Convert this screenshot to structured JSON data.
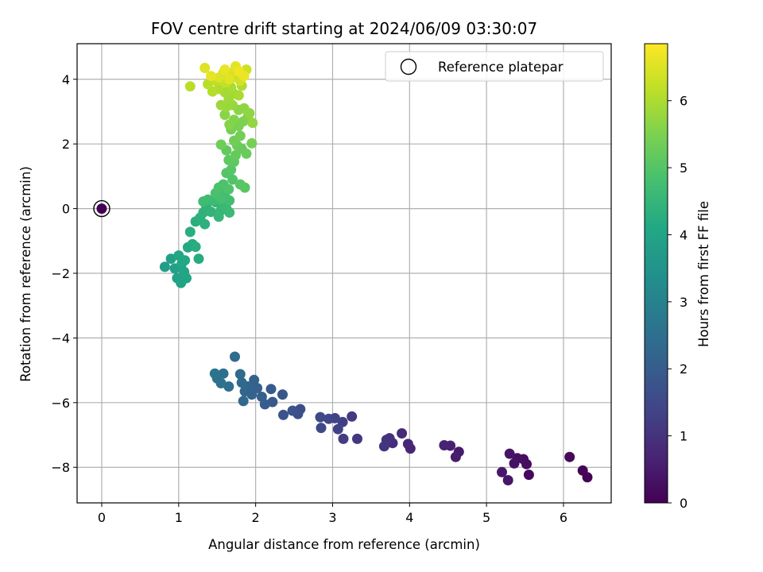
{
  "chart_data": {
    "type": "scatter",
    "title": "FOV centre drift starting at 2024/06/09 03:30:07",
    "xlabel": "Angular distance from reference (arcmin)",
    "ylabel": "Rotation from reference (arcmin)",
    "colorbar_label": "Hours from first FF file",
    "xlim": [
      -0.32,
      6.62
    ],
    "ylim": [
      -9.1,
      5.1
    ],
    "clim": [
      0,
      6.85
    ],
    "x_ticks": [
      0,
      1,
      2,
      3,
      4,
      5,
      6
    ],
    "y_ticks": [
      -8,
      -6,
      -4,
      -2,
      0,
      2,
      4
    ],
    "colorbar_ticks": [
      0,
      1,
      2,
      3,
      4,
      5,
      6
    ],
    "grid": true,
    "legend": {
      "placement": "top-right",
      "entries": [
        "Reference platepar"
      ]
    },
    "colormap": "viridis",
    "reference_point": {
      "x": 0,
      "y": 0,
      "t": 0
    },
    "points": [
      [
        6.31,
        -8.31,
        0.03
      ],
      [
        6.25,
        -8.1,
        0.08
      ],
      [
        6.08,
        -7.68,
        0.13
      ],
      [
        5.55,
        -8.23,
        0.18
      ],
      [
        5.52,
        -7.9,
        0.22
      ],
      [
        5.48,
        -7.75,
        0.26
      ],
      [
        5.4,
        -7.72,
        0.3
      ],
      [
        5.36,
        -7.88,
        0.34
      ],
      [
        5.3,
        -7.58,
        0.38
      ],
      [
        5.28,
        -8.4,
        0.42
      ],
      [
        5.2,
        -8.15,
        0.45
      ],
      [
        4.64,
        -7.52,
        0.5
      ],
      [
        4.6,
        -7.68,
        0.55
      ],
      [
        4.53,
        -7.33,
        0.6
      ],
      [
        4.45,
        -7.32,
        0.65
      ],
      [
        4.01,
        -7.42,
        0.72
      ],
      [
        3.98,
        -7.28,
        0.78
      ],
      [
        3.9,
        -6.95,
        0.84
      ],
      [
        3.78,
        -7.25,
        0.9
      ],
      [
        3.74,
        -7.1,
        0.95
      ],
      [
        3.7,
        -7.15,
        1.0
      ],
      [
        3.67,
        -7.35,
        1.05
      ],
      [
        3.32,
        -7.12,
        1.1
      ],
      [
        3.25,
        -6.43,
        1.16
      ],
      [
        3.14,
        -7.12,
        1.22
      ],
      [
        3.13,
        -6.6,
        1.28
      ],
      [
        3.07,
        -6.82,
        1.33
      ],
      [
        3.03,
        -6.48,
        1.38
      ],
      [
        2.95,
        -6.5,
        1.43
      ],
      [
        2.85,
        -6.78,
        1.48
      ],
      [
        2.84,
        -6.45,
        1.53
      ],
      [
        2.58,
        -6.2,
        1.6
      ],
      [
        2.55,
        -6.35,
        1.66
      ],
      [
        2.48,
        -6.25,
        1.72
      ],
      [
        2.36,
        -6.38,
        1.78
      ],
      [
        2.35,
        -5.75,
        1.84
      ],
      [
        2.22,
        -5.98,
        1.9
      ],
      [
        2.2,
        -5.58,
        1.95
      ],
      [
        2.12,
        -6.05,
        2.0
      ],
      [
        2.08,
        -5.82,
        2.05
      ],
      [
        2.02,
        -5.55,
        2.1
      ],
      [
        1.98,
        -5.3,
        2.14
      ],
      [
        1.95,
        -5.75,
        2.18
      ],
      [
        1.9,
        -5.5,
        2.22
      ],
      [
        1.86,
        -5.65,
        2.26
      ],
      [
        1.84,
        -5.95,
        2.3
      ],
      [
        1.82,
        -5.38,
        2.34
      ],
      [
        1.8,
        -5.12,
        2.38
      ],
      [
        1.73,
        -4.58,
        2.42
      ],
      [
        1.65,
        -5.5,
        2.46
      ],
      [
        1.58,
        -5.1,
        2.5
      ],
      [
        1.55,
        -5.4,
        2.54
      ],
      [
        1.5,
        -5.25,
        2.58
      ],
      [
        1.47,
        -5.1,
        2.62
      ],
      [
        0.82,
        -1.8,
        3.8
      ],
      [
        0.9,
        -1.55,
        3.84
      ],
      [
        0.95,
        -1.85,
        3.88
      ],
      [
        0.98,
        -2.15,
        3.92
      ],
      [
        1.03,
        -2.3,
        3.96
      ],
      [
        1.07,
        -1.95,
        4.0
      ],
      [
        1.1,
        -2.15,
        4.03
      ],
      [
        1.04,
        -1.7,
        4.06
      ],
      [
        1.0,
        -1.45,
        4.09
      ],
      [
        1.08,
        -1.6,
        4.12
      ],
      [
        1.12,
        -1.2,
        4.15
      ],
      [
        1.18,
        -1.1,
        4.18
      ],
      [
        1.26,
        -1.55,
        4.21
      ],
      [
        1.22,
        -1.18,
        4.24
      ],
      [
        1.15,
        -0.72,
        4.27
      ],
      [
        1.22,
        -0.4,
        4.3
      ],
      [
        1.28,
        -0.28,
        4.33
      ],
      [
        1.34,
        -0.48,
        4.36
      ],
      [
        1.32,
        -0.12,
        4.39
      ],
      [
        1.36,
        0.05,
        4.42
      ],
      [
        1.42,
        -0.1,
        4.45
      ],
      [
        1.48,
        0.2,
        4.48
      ],
      [
        1.55,
        -0.05,
        4.51
      ],
      [
        1.52,
        -0.25,
        4.54
      ],
      [
        1.58,
        0.1,
        4.57
      ],
      [
        1.62,
        0.0,
        4.6
      ],
      [
        1.66,
        -0.12,
        4.63
      ],
      [
        1.45,
        0.25,
        4.66
      ],
      [
        1.38,
        0.28,
        4.69
      ],
      [
        1.32,
        0.22,
        4.72
      ],
      [
        1.6,
        0.45,
        4.75
      ],
      [
        1.66,
        0.25,
        4.78
      ],
      [
        1.55,
        0.3,
        4.81
      ],
      [
        1.48,
        0.48,
        4.84
      ],
      [
        1.52,
        0.65,
        4.87
      ],
      [
        1.58,
        0.75,
        4.9
      ],
      [
        1.65,
        0.6,
        4.93
      ],
      [
        1.7,
        0.9,
        4.96
      ],
      [
        1.62,
        1.1,
        4.99
      ],
      [
        1.68,
        1.2,
        5.02
      ],
      [
        1.8,
        0.75,
        5.05
      ],
      [
        1.86,
        0.65,
        5.08
      ],
      [
        1.72,
        1.45,
        5.11
      ],
      [
        1.65,
        1.5,
        5.14
      ],
      [
        1.62,
        1.8,
        5.17
      ],
      [
        1.74,
        1.65,
        5.2
      ],
      [
        1.82,
        1.85,
        5.23
      ],
      [
        1.88,
        1.7,
        5.26
      ],
      [
        1.76,
        1.95,
        5.29
      ],
      [
        1.55,
        1.98,
        5.32
      ],
      [
        1.72,
        2.1,
        5.35
      ],
      [
        1.8,
        2.25,
        5.38
      ],
      [
        1.68,
        2.45,
        5.41
      ],
      [
        1.95,
        2.02,
        5.44
      ],
      [
        1.78,
        2.55,
        5.47
      ],
      [
        1.84,
        2.7,
        5.5
      ],
      [
        1.9,
        2.85,
        5.53
      ],
      [
        1.72,
        2.75,
        5.56
      ],
      [
        1.66,
        2.6,
        5.59
      ],
      [
        1.6,
        2.9,
        5.62
      ],
      [
        1.78,
        3.05,
        5.65
      ],
      [
        1.85,
        3.1,
        5.68
      ],
      [
        1.92,
        2.95,
        5.71
      ],
      [
        1.96,
        2.65,
        5.74
      ],
      [
        1.7,
        3.2,
        5.77
      ],
      [
        1.62,
        3.15,
        5.8
      ],
      [
        1.55,
        3.2,
        5.83
      ],
      [
        1.65,
        3.4,
        5.86
      ],
      [
        1.72,
        3.55,
        5.89
      ],
      [
        1.6,
        3.6,
        5.92
      ],
      [
        1.68,
        3.75,
        5.95
      ],
      [
        1.78,
        3.5,
        5.98
      ],
      [
        1.82,
        3.8,
        6.01
      ],
      [
        1.52,
        3.7,
        6.04
      ],
      [
        1.44,
        3.62,
        6.07
      ],
      [
        1.38,
        3.85,
        6.1
      ],
      [
        1.15,
        3.78,
        6.13
      ],
      [
        1.48,
        3.95,
        6.16
      ],
      [
        1.55,
        4.0,
        6.19
      ],
      [
        1.62,
        3.9,
        6.22
      ],
      [
        1.7,
        4.05,
        6.25
      ],
      [
        1.76,
        4.1,
        6.28
      ],
      [
        1.82,
        4.2,
        6.31
      ],
      [
        1.88,
        4.3,
        6.34
      ],
      [
        1.8,
        3.95,
        6.37
      ],
      [
        1.72,
        4.25,
        6.4
      ],
      [
        1.64,
        4.15,
        6.43
      ],
      [
        1.58,
        4.2,
        6.46
      ],
      [
        1.52,
        4.05,
        6.49
      ],
      [
        1.34,
        4.35,
        6.52
      ],
      [
        1.66,
        4.0,
        6.55
      ],
      [
        1.74,
        4.4,
        6.58
      ],
      [
        1.42,
        4.1,
        6.61
      ],
      [
        1.6,
        4.3,
        6.64
      ],
      [
        1.85,
        4.1,
        6.67
      ],
      [
        1.78,
        4.25,
        6.7
      ]
    ]
  }
}
